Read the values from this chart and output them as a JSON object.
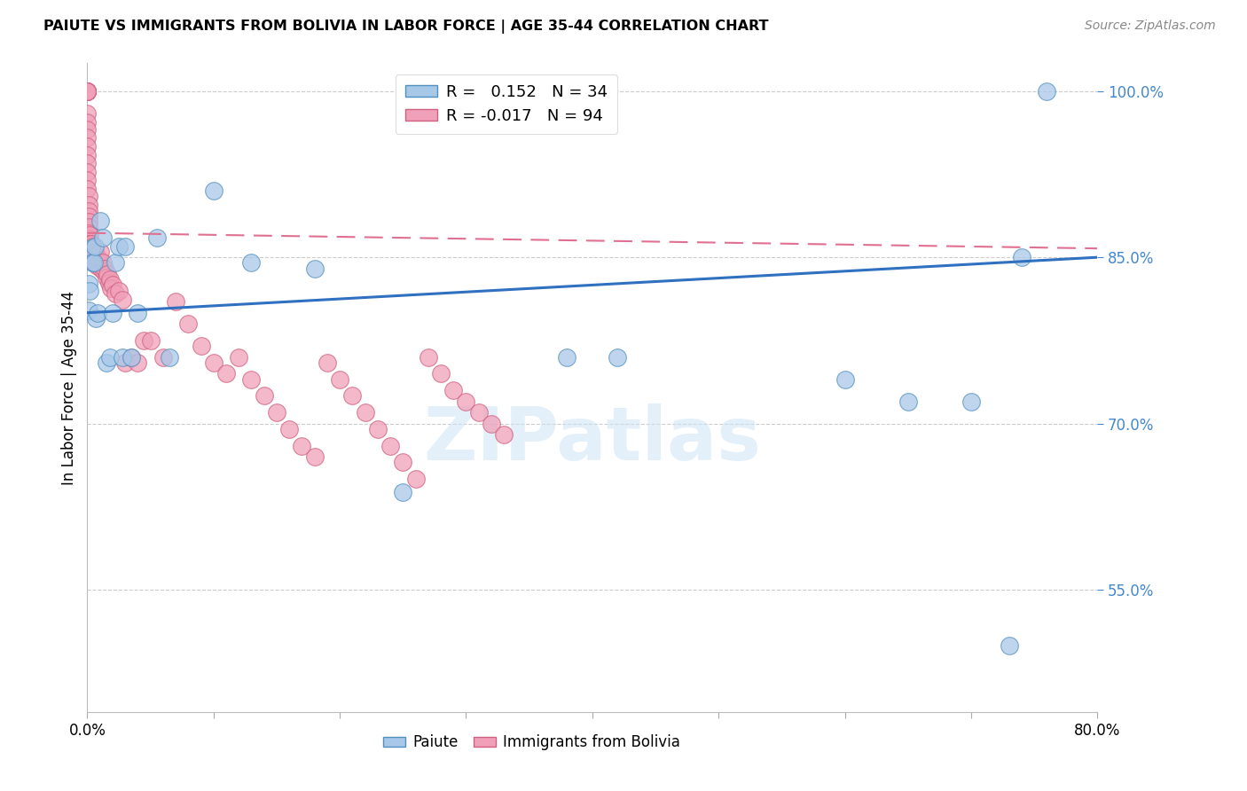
{
  "title": "PAIUTE VS IMMIGRANTS FROM BOLIVIA IN LABOR FORCE | AGE 35-44 CORRELATION CHART",
  "source": "Source: ZipAtlas.com",
  "ylabel": "In Labor Force | Age 35-44",
  "legend_label1": "Paiute",
  "legend_label2": "Immigrants from Bolivia",
  "R1": 0.152,
  "N1": 34,
  "R2": -0.017,
  "N2": 94,
  "xlim": [
    0.0,
    0.8
  ],
  "ylim": [
    0.44,
    1.025
  ],
  "xticks": [
    0.0,
    0.1,
    0.2,
    0.3,
    0.4,
    0.5,
    0.6,
    0.7,
    0.8
  ],
  "xtick_labels": [
    "0.0%",
    "",
    "",
    "",
    "",
    "",
    "",
    "",
    "80.0%"
  ],
  "ytick_positions": [
    0.55,
    0.7,
    0.85,
    1.0
  ],
  "ytick_labels": [
    "55.0%",
    "70.0%",
    "85.0%",
    "100.0%"
  ],
  "blue_scatter_color": "#a8c8e8",
  "blue_edge_color": "#5090c0",
  "pink_scatter_color": "#f0a0b8",
  "pink_edge_color": "#d06080",
  "blue_line_color": "#3070c0",
  "pink_line_color": "#e07090",
  "grid_color": "#cccccc",
  "axis_label_color": "#4488cc",
  "watermark": "ZIPatlas",
  "blue_line_x": [
    0.0,
    0.8
  ],
  "blue_line_y": [
    0.8,
    0.85
  ],
  "pink_line_x": [
    0.0,
    0.8
  ],
  "pink_line_y": [
    0.872,
    0.858
  ],
  "paiute_x": [
    0.001,
    0.001,
    0.002,
    0.003,
    0.004,
    0.005,
    0.006,
    0.007,
    0.008,
    0.01,
    0.012,
    0.015,
    0.018,
    0.02,
    0.022,
    0.025,
    0.028,
    0.03,
    0.035,
    0.04,
    0.055,
    0.065,
    0.1,
    0.13,
    0.18,
    0.25,
    0.38,
    0.42,
    0.6,
    0.65,
    0.7,
    0.73,
    0.74,
    0.76
  ],
  "paiute_y": [
    0.802,
    0.826,
    0.82,
    0.858,
    0.845,
    0.845,
    0.86,
    0.795,
    0.8,
    0.883,
    0.868,
    0.755,
    0.76,
    0.8,
    0.845,
    0.86,
    0.76,
    0.86,
    0.76,
    0.8,
    0.868,
    0.76,
    0.91,
    0.845,
    0.84,
    0.638,
    0.76,
    0.76,
    0.74,
    0.72,
    0.72,
    0.5,
    0.85,
    1.0
  ],
  "bolivia_x": [
    0.0,
    0.0,
    0.0,
    0.0,
    0.0,
    0.0,
    0.0,
    0.0,
    0.0,
    0.0,
    0.0,
    0.0,
    0.0,
    0.0,
    0.0,
    0.0,
    0.0,
    0.0,
    0.0,
    0.0,
    0.001,
    0.001,
    0.001,
    0.001,
    0.001,
    0.001,
    0.001,
    0.001,
    0.001,
    0.002,
    0.002,
    0.002,
    0.002,
    0.003,
    0.003,
    0.003,
    0.004,
    0.004,
    0.005,
    0.005,
    0.006,
    0.006,
    0.007,
    0.007,
    0.008,
    0.008,
    0.009,
    0.01,
    0.011,
    0.012,
    0.013,
    0.014,
    0.015,
    0.016,
    0.017,
    0.018,
    0.019,
    0.02,
    0.022,
    0.025,
    0.028,
    0.03,
    0.035,
    0.04,
    0.045,
    0.05,
    0.06,
    0.07,
    0.08,
    0.09,
    0.1,
    0.11,
    0.12,
    0.13,
    0.14,
    0.15,
    0.16,
    0.17,
    0.18,
    0.19,
    0.2,
    0.21,
    0.22,
    0.23,
    0.24,
    0.25,
    0.26,
    0.27,
    0.28,
    0.29,
    0.3,
    0.31,
    0.32,
    0.33
  ],
  "bolivia_y": [
    1.0,
    1.0,
    1.0,
    1.0,
    1.0,
    1.0,
    1.0,
    1.0,
    1.0,
    1.0,
    0.98,
    0.972,
    0.965,
    0.958,
    0.95,
    0.942,
    0.935,
    0.927,
    0.92,
    0.912,
    0.905,
    0.897,
    0.892,
    0.887,
    0.882,
    0.877,
    0.872,
    0.867,
    0.862,
    0.87,
    0.862,
    0.855,
    0.847,
    0.862,
    0.855,
    0.847,
    0.86,
    0.852,
    0.858,
    0.85,
    0.855,
    0.847,
    0.852,
    0.844,
    0.85,
    0.842,
    0.848,
    0.855,
    0.84,
    0.845,
    0.837,
    0.84,
    0.832,
    0.835,
    0.827,
    0.83,
    0.822,
    0.825,
    0.817,
    0.82,
    0.812,
    0.755,
    0.76,
    0.755,
    0.775,
    0.775,
    0.76,
    0.81,
    0.79,
    0.77,
    0.755,
    0.745,
    0.76,
    0.74,
    0.725,
    0.71,
    0.695,
    0.68,
    0.67,
    0.755,
    0.74,
    0.725,
    0.71,
    0.695,
    0.68,
    0.665,
    0.65,
    0.76,
    0.745,
    0.73,
    0.72,
    0.71,
    0.7,
    0.69
  ]
}
